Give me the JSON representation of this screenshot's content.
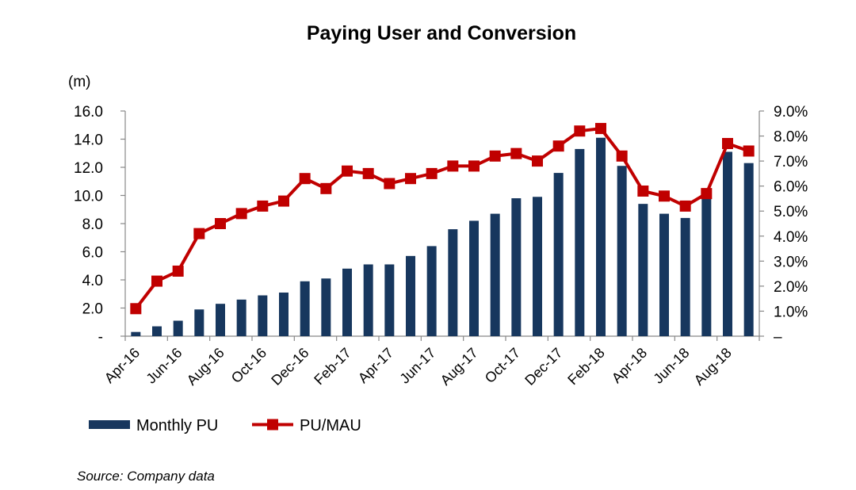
{
  "chart_data": {
    "type": "bar+line",
    "title": "Paying User and Conversion",
    "y_left_unit": "(m)",
    "y_left_ticks": [
      "-",
      "2.0",
      "4.0",
      "6.0",
      "8.0",
      "10.0",
      "12.0",
      "14.0",
      "16.0"
    ],
    "y_left_range": [
      0,
      16
    ],
    "y_right_ticks": [
      "–",
      "1.0%",
      "2.0%",
      "3.0%",
      "4.0%",
      "5.0%",
      "6.0%",
      "7.0%",
      "8.0%",
      "9.0%"
    ],
    "y_right_range": [
      0,
      9
    ],
    "months": [
      "Apr-16",
      "May-16",
      "Jun-16",
      "Jul-16",
      "Aug-16",
      "Sep-16",
      "Oct-16",
      "Nov-16",
      "Dec-16",
      "Jan-17",
      "Feb-17",
      "Mar-17",
      "Apr-17",
      "May-17",
      "Jun-17",
      "Jul-17",
      "Aug-17",
      "Sep-17",
      "Oct-17",
      "Nov-17",
      "Dec-17",
      "Jan-18",
      "Feb-18",
      "Mar-18",
      "Apr-18",
      "May-18",
      "Jun-18",
      "Jul-18",
      "Aug-18",
      "Sep-18"
    ],
    "x_tick_labels": [
      "Apr-16",
      "Jun-16",
      "Aug-16",
      "Oct-16",
      "Dec-16",
      "Feb-17",
      "Apr-17",
      "Jun-17",
      "Aug-17",
      "Oct-17",
      "Dec-17",
      "Feb-18",
      "Apr-18",
      "Jun-18",
      "Aug-18"
    ],
    "series": [
      {
        "name": "Monthly PU",
        "type": "bar",
        "axis": "left",
        "color": "#17375e",
        "values": [
          0.3,
          0.7,
          1.1,
          1.9,
          2.3,
          2.6,
          2.9,
          3.1,
          3.9,
          4.1,
          4.8,
          5.1,
          5.1,
          5.7,
          6.4,
          7.6,
          8.2,
          8.7,
          9.8,
          9.9,
          11.6,
          13.3,
          14.1,
          12.1,
          9.4,
          8.7,
          8.4,
          9.8,
          13.1,
          12.3
        ]
      },
      {
        "name": "PU/MAU",
        "type": "line",
        "axis": "right",
        "color": "#c00000",
        "values": [
          1.1,
          2.2,
          2.6,
          4.1,
          4.5,
          4.9,
          5.2,
          5.4,
          6.3,
          5.9,
          6.6,
          6.5,
          6.1,
          6.3,
          6.5,
          6.8,
          6.8,
          7.2,
          7.3,
          7.0,
          7.6,
          8.2,
          8.3,
          7.2,
          5.8,
          5.6,
          5.2,
          5.7,
          7.7,
          7.4
        ]
      }
    ],
    "legend": [
      "Monthly PU",
      "PU/MAU"
    ],
    "legend_position": "bottom-left",
    "source": "Source: Company data",
    "grid": false
  }
}
